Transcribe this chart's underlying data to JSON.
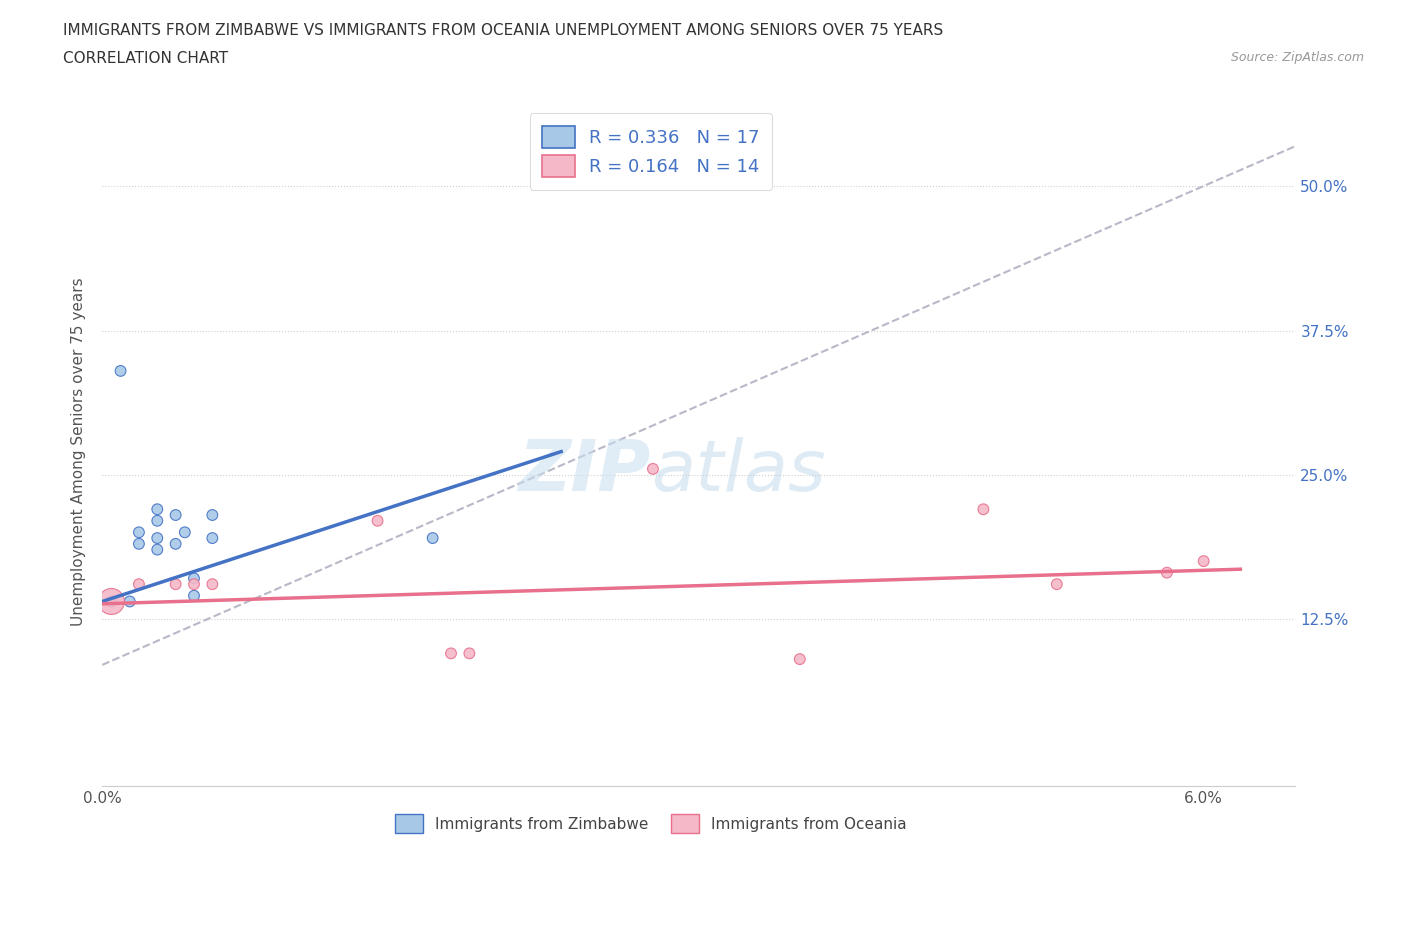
{
  "title_line1": "IMMIGRANTS FROM ZIMBABWE VS IMMIGRANTS FROM OCEANIA UNEMPLOYMENT AMONG SENIORS OVER 75 YEARS",
  "title_line2": "CORRELATION CHART",
  "source_text": "Source: ZipAtlas.com",
  "ylabel": "Unemployment Among Seniors over 75 years",
  "xlim": [
    0.0,
    0.065
  ],
  "ylim": [
    -0.02,
    0.56
  ],
  "xticks": [
    0.0,
    0.01,
    0.02,
    0.03,
    0.04,
    0.05,
    0.06
  ],
  "yticks": [
    0.125,
    0.25,
    0.375,
    0.5
  ],
  "ytick_labels": [
    "12.5%",
    "25.0%",
    "37.5%",
    "50.0%"
  ],
  "xtick_labels": [
    "0.0%",
    "",
    "",
    "",
    "",
    "",
    "6.0%"
  ],
  "zimbabwe_color": "#a8c8e8",
  "oceania_color": "#f4b8c8",
  "zimbabwe_line_color": "#4472c4",
  "oceania_line_color": "#e8708c",
  "trendline_color": "#b8b8c8",
  "watermark_zip": "ZIP",
  "watermark_atlas": "atlas",
  "zimbabwe_scatter_x": [
    0.0005,
    0.001,
    0.0015,
    0.002,
    0.002,
    0.003,
    0.003,
    0.003,
    0.003,
    0.004,
    0.004,
    0.0045,
    0.005,
    0.005,
    0.006,
    0.006,
    0.018
  ],
  "zimbabwe_scatter_y": [
    0.14,
    0.34,
    0.14,
    0.19,
    0.2,
    0.185,
    0.195,
    0.21,
    0.22,
    0.19,
    0.215,
    0.2,
    0.145,
    0.16,
    0.195,
    0.215,
    0.195
  ],
  "zimbabwe_scatter_size": [
    60,
    60,
    60,
    60,
    60,
    60,
    60,
    60,
    60,
    60,
    60,
    60,
    60,
    60,
    60,
    60,
    60
  ],
  "oceania_scatter_x": [
    0.0005,
    0.002,
    0.004,
    0.005,
    0.006,
    0.015,
    0.019,
    0.02,
    0.03,
    0.038,
    0.048,
    0.052,
    0.058,
    0.06
  ],
  "oceania_scatter_y": [
    0.14,
    0.155,
    0.155,
    0.155,
    0.155,
    0.21,
    0.095,
    0.095,
    0.255,
    0.09,
    0.22,
    0.155,
    0.165,
    0.175
  ],
  "oceania_scatter_size": [
    350,
    60,
    60,
    60,
    60,
    60,
    60,
    60,
    60,
    60,
    60,
    60,
    60,
    60
  ],
  "zimbabwe_trend_x": [
    0.0,
    0.025
  ],
  "zimbabwe_trend_y": [
    0.14,
    0.27
  ],
  "oceania_trend_x": [
    0.0,
    0.062
  ],
  "oceania_trend_y": [
    0.138,
    0.168
  ],
  "diagonal_trend_x": [
    0.0,
    0.065
  ],
  "diagonal_trend_y": [
    0.085,
    0.535
  ],
  "legend_text1": "R = 0.336   N = 17",
  "legend_text2": "R = 0.164   N = 14"
}
